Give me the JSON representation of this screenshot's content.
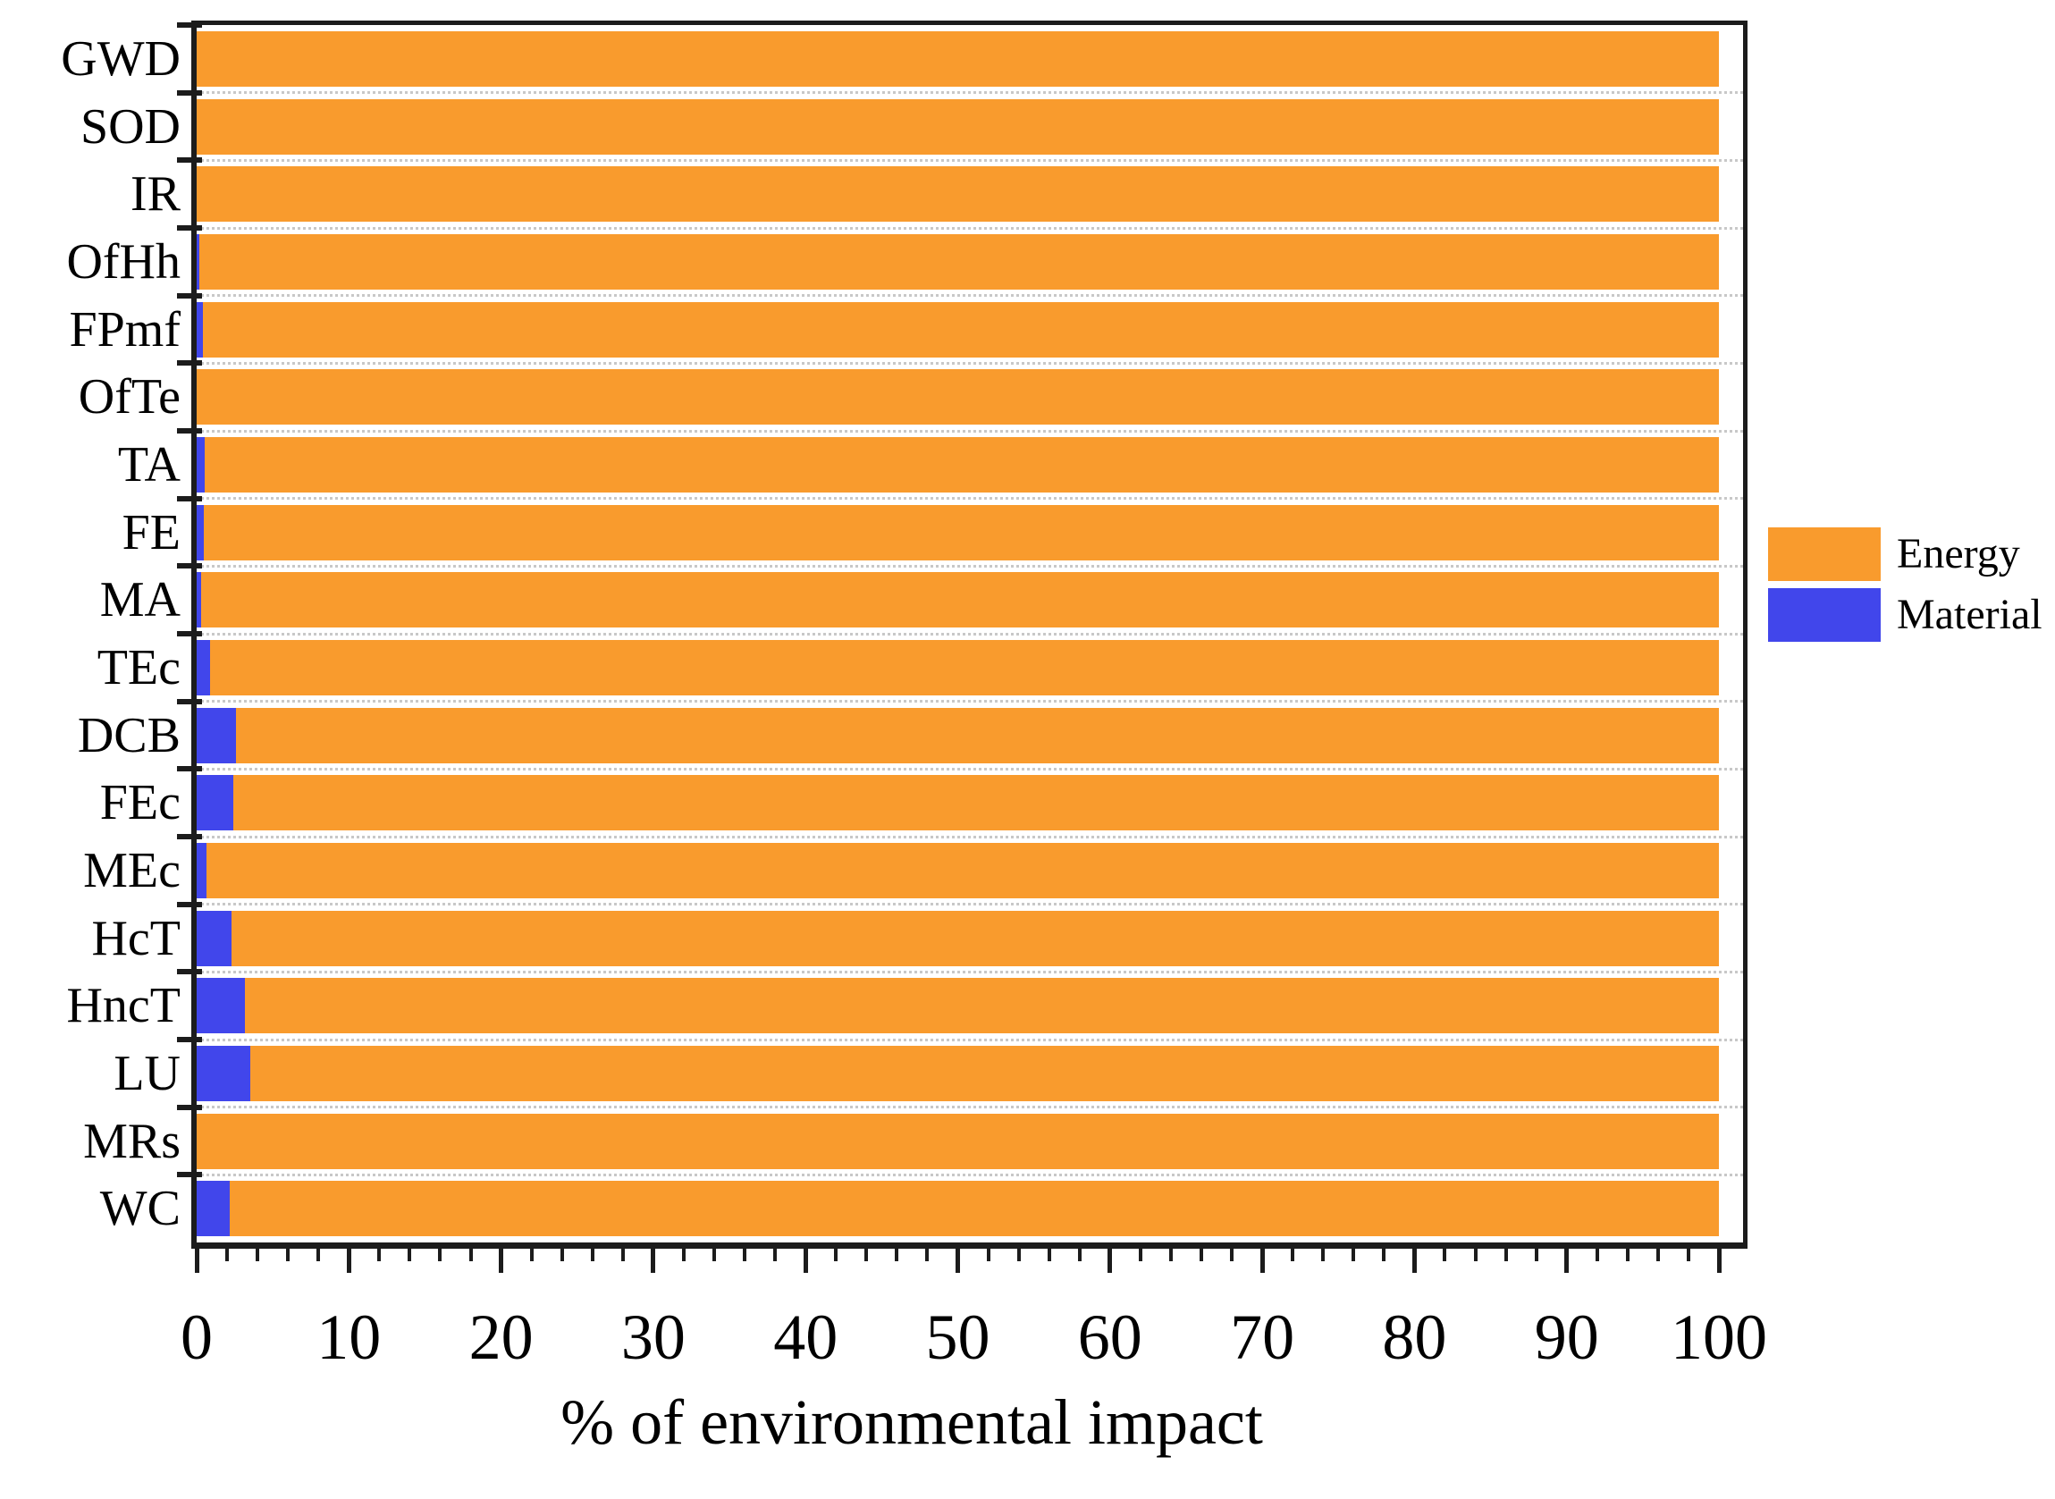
{
  "chart_data": {
    "type": "bar",
    "orientation": "horizontal",
    "stacked": true,
    "percent_total": 100,
    "title": "",
    "xlabel": "% of environmental impact",
    "ylabel": "",
    "xlim": [
      0,
      101.6
    ],
    "x_major_ticks": [
      0,
      10,
      20,
      30,
      40,
      50,
      60,
      70,
      80,
      90,
      100
    ],
    "x_minor_tick_step": 2,
    "grid": "horizontal-dotted",
    "categories": [
      "GWD",
      "SOD",
      "IR",
      "OfHh",
      "FPmf",
      "OfTe",
      "TA",
      "FE",
      "MA",
      "TEc",
      "DCB",
      "FEc",
      "MEc",
      "HcT",
      "HncT",
      "LU",
      "MRs",
      "WC"
    ],
    "series": [
      {
        "name": "Material",
        "color": "#4146EB",
        "values": [
          0,
          0,
          0,
          0.2,
          0.4,
          0,
          0.55,
          0.45,
          0.3,
          0.9,
          2.6,
          2.4,
          0.65,
          2.3,
          3.2,
          3.5,
          0,
          2.2
        ]
      },
      {
        "name": "Energy",
        "color": "#F99B2D",
        "values": [
          100,
          100,
          100,
          99.8,
          99.6,
          100,
          99.45,
          99.55,
          99.7,
          99.1,
          97.4,
          97.6,
          99.35,
          97.7,
          96.8,
          96.5,
          100,
          97.8
        ]
      }
    ],
    "legend": {
      "position": "right",
      "entries": [
        {
          "label": "Energy",
          "color": "#F99B2D"
        },
        {
          "label": "Material",
          "color": "#4146EB"
        }
      ]
    }
  },
  "colors": {
    "frame": "#1c1c1c",
    "gridline": "#c8c8c8",
    "background": "#ffffff",
    "text": "#000000"
  }
}
